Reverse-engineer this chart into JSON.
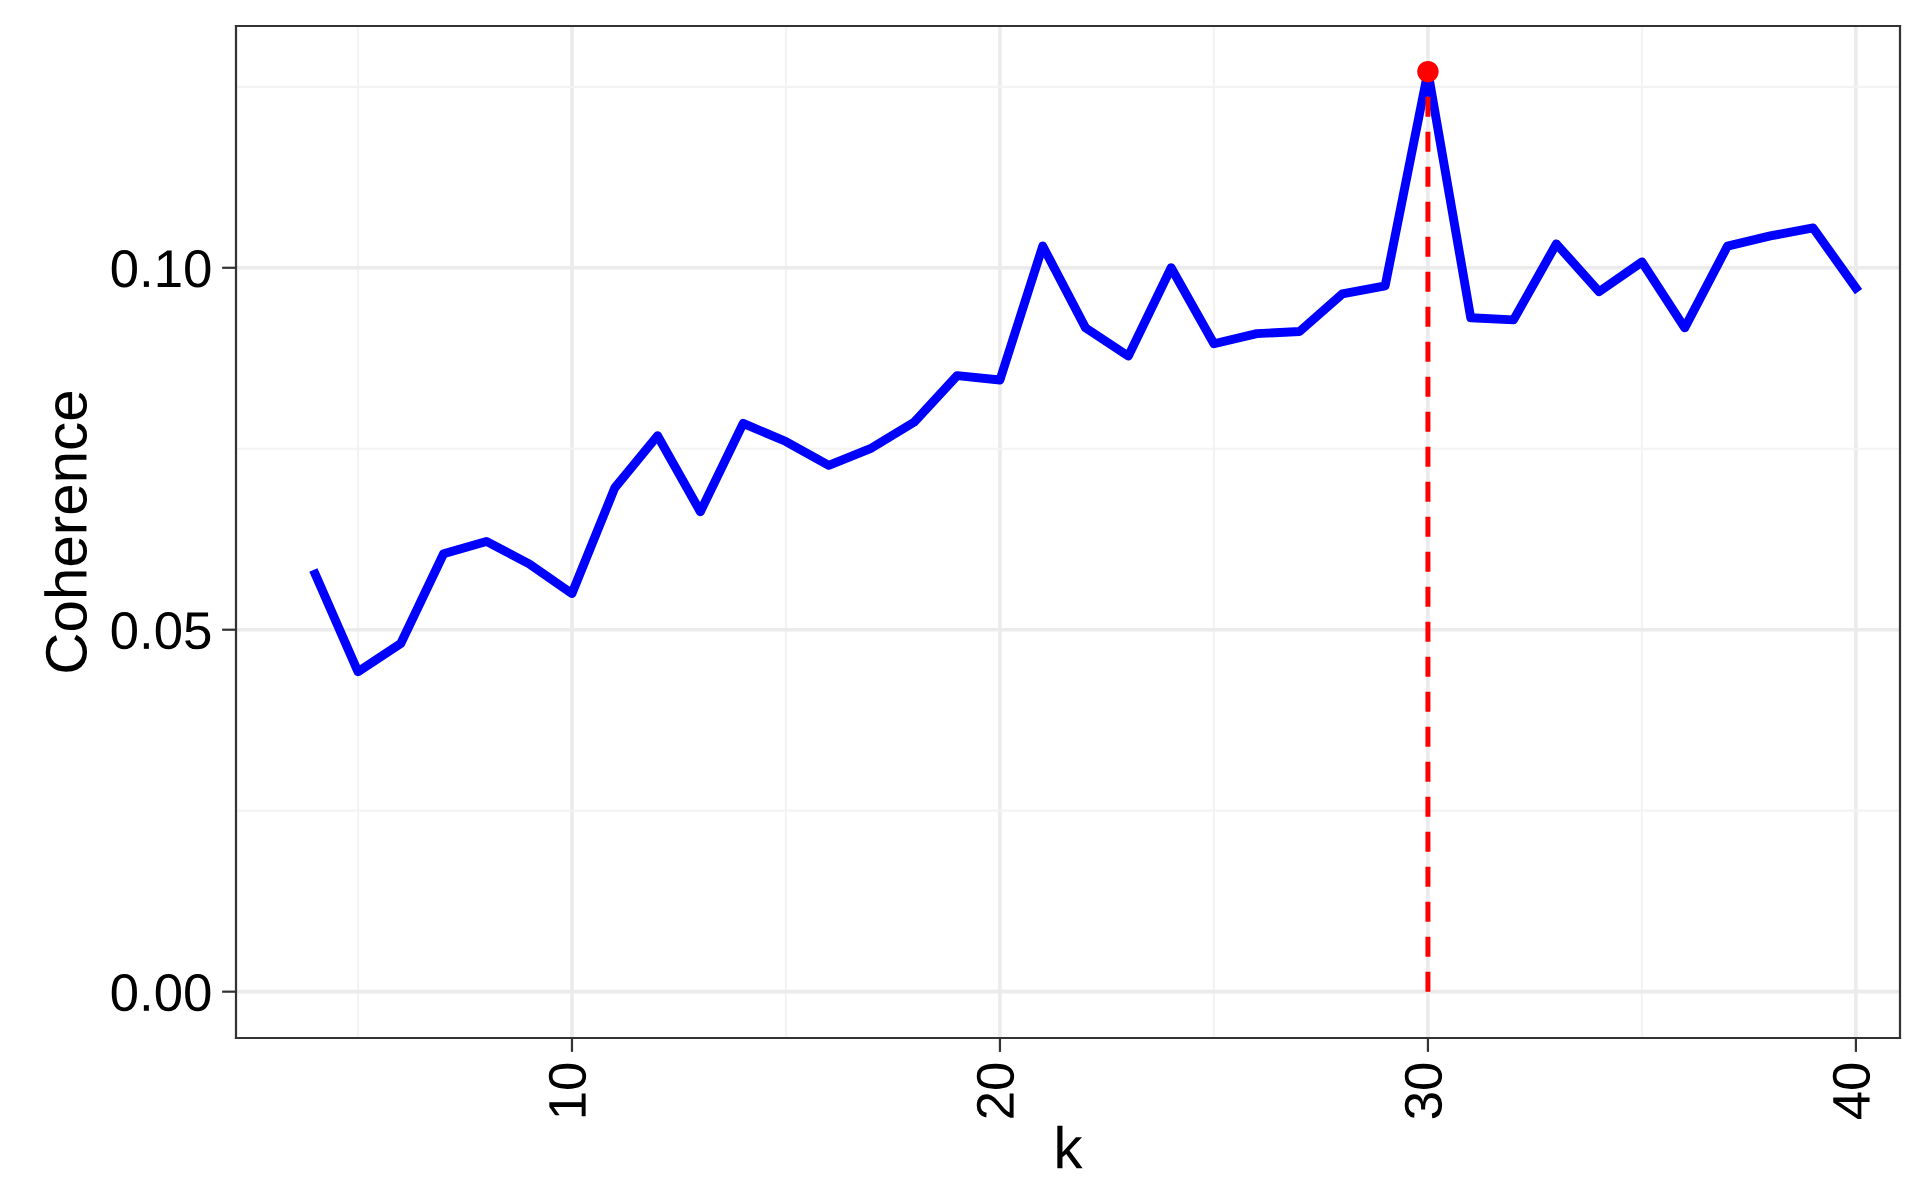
{
  "chart_data": {
    "type": "line",
    "xlabel": "k",
    "ylabel": "Coherence",
    "xlim": [
      2.15,
      41.03
    ],
    "ylim": [
      -0.0064,
      0.1334
    ],
    "xticks": [
      {
        "value": 5,
        "label": null
      },
      10,
      {
        "value": 15,
        "label": null
      },
      20,
      {
        "value": 25,
        "label": null
      },
      30,
      {
        "value": 35,
        "label": null
      },
      40
    ],
    "yticks": [
      {
        "value": 0,
        "label": "0.00"
      },
      {
        "value": 0.025,
        "label": null
      },
      {
        "value": 0.05,
        "label": "0.05"
      },
      {
        "value": 0.075,
        "label": null
      },
      {
        "value": 0.1,
        "label": "0.10"
      },
      {
        "value": 0.125,
        "label": null
      }
    ],
    "grid": true,
    "legend": false,
    "series": [
      {
        "color": "#0000ff",
        "line_style": "solid",
        "x": [
          4,
          5,
          6,
          7,
          8,
          9,
          10,
          11,
          12,
          13,
          14,
          15,
          16,
          17,
          18,
          19,
          20,
          21,
          22,
          23,
          24,
          25,
          26,
          27,
          28,
          29,
          30,
          31,
          32,
          33,
          34,
          35,
          36,
          37,
          38,
          39,
          40
        ],
        "values": [
          0.0577,
          0.0442,
          0.0481,
          0.0605,
          0.0622,
          0.0591,
          0.055,
          0.0696,
          0.0768,
          0.0663,
          0.0785,
          0.076,
          0.0727,
          0.0751,
          0.0787,
          0.0851,
          0.0845,
          0.103,
          0.0917,
          0.0878,
          0.1,
          0.0895,
          0.0909,
          0.0912,
          0.0964,
          0.0975,
          0.1271,
          0.0931,
          0.0928,
          0.1033,
          0.0967,
          0.1008,
          0.0917,
          0.103,
          0.1044,
          0.1055,
          0.0972
        ]
      },
      {
        "type": "line",
        "color": "#ff0000",
        "line_style": "dashed",
        "x": [
          30,
          30
        ],
        "values": [
          0,
          0.1271
        ]
      },
      {
        "type": "scatter",
        "color": "#ff0000",
        "marker": "circle",
        "x": [
          30
        ],
        "values": [
          0.1271
        ]
      }
    ]
  }
}
